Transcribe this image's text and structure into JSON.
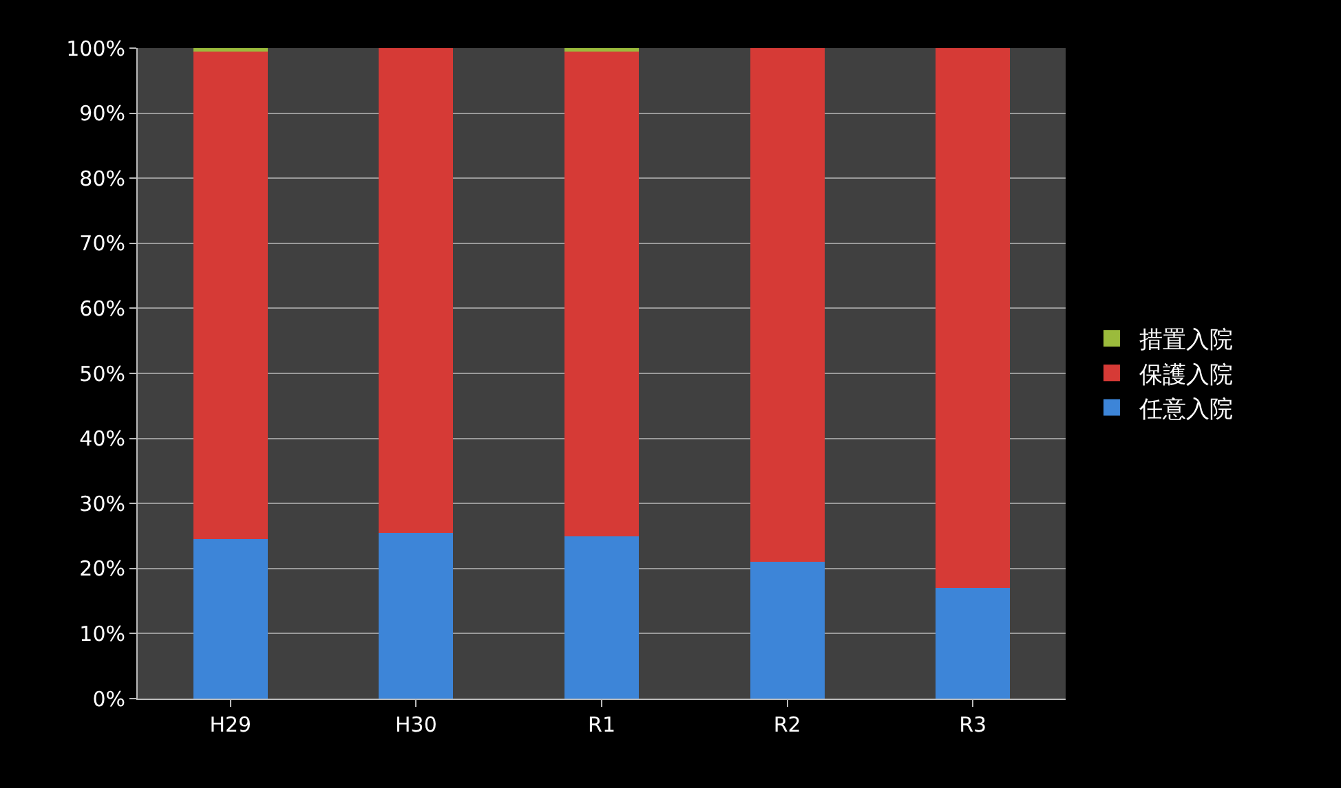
{
  "chart_data": {
    "type": "bar",
    "stacked": true,
    "categories": [
      "H29",
      "H30",
      "R1",
      "R2",
      "R3"
    ],
    "series": [
      {
        "name": "任意入院",
        "color": "#3d85d8",
        "values": [
          24.5,
          25.5,
          25,
          21,
          17
        ]
      },
      {
        "name": "保護入院",
        "color": "#d63a36",
        "values": [
          75,
          74.5,
          74.5,
          79,
          83
        ]
      },
      {
        "name": "措置入院",
        "color": "#9bbb3c",
        "values": [
          0.5,
          0,
          0.5,
          0,
          0
        ]
      }
    ],
    "ylim": [
      0,
      100
    ],
    "yticks": [
      {
        "value": 0,
        "label": "0%"
      },
      {
        "value": 10,
        "label": "10%"
      },
      {
        "value": 20,
        "label": "20%"
      },
      {
        "value": 30,
        "label": "30%"
      },
      {
        "value": 40,
        "label": "40%"
      },
      {
        "value": 50,
        "label": "50%"
      },
      {
        "value": 60,
        "label": "60%"
      },
      {
        "value": 70,
        "label": "70%"
      },
      {
        "value": 80,
        "label": "80%"
      },
      {
        "value": 90,
        "label": "90%"
      },
      {
        "value": 100,
        "label": "100%"
      }
    ],
    "grid": "y",
    "legend": "right"
  }
}
